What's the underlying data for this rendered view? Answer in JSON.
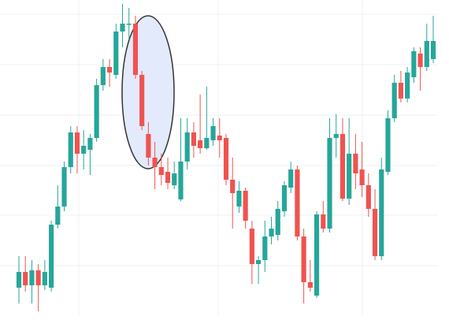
{
  "chart_data": {
    "type": "candlestick",
    "ylim": [
      0,
      400
    ],
    "up_color": "#26a69a",
    "down_color": "#ef5350",
    "open": [
      35,
      55,
      38,
      57,
      38,
      35,
      115,
      138,
      188,
      232,
      205,
      210,
      225,
      292,
      315,
      305,
      360,
      370,
      370,
      305,
      230,
      200,
      188,
      182,
      165,
      147,
      195,
      232,
      222,
      212,
      222,
      228,
      225,
      172,
      138,
      158,
      110,
      65,
      70,
      100,
      102,
      132,
      162,
      185,
      100,
      42,
      25,
      128,
      110,
      225,
      230,
      148,
      205,
      185,
      165,
      135,
      75,
      182,
      250,
      295,
      275,
      302,
      332,
      315,
      325
    ],
    "close": [
      55,
      38,
      57,
      38,
      55,
      115,
      138,
      188,
      232,
      205,
      215,
      225,
      292,
      315,
      308,
      360,
      370,
      370,
      305,
      240,
      200,
      188,
      178,
      168,
      180,
      195,
      232,
      215,
      212,
      225,
      240,
      222,
      172,
      155,
      158,
      120,
      65,
      70,
      100,
      110,
      135,
      165,
      185,
      100,
      42,
      35,
      128,
      110,
      225,
      230,
      148,
      205,
      180,
      165,
      135,
      75,
      185,
      250,
      295,
      275,
      308,
      335,
      315,
      348,
      348
    ],
    "high": [
      75,
      75,
      70,
      65,
      70,
      120,
      165,
      195,
      240,
      240,
      235,
      230,
      300,
      325,
      325,
      370,
      395,
      390,
      380,
      310,
      245,
      220,
      205,
      200,
      195,
      250,
      250,
      245,
      280,
      290,
      250,
      250,
      230,
      200,
      170,
      162,
      120,
      75,
      120,
      125,
      145,
      170,
      195,
      190,
      110,
      70,
      132,
      145,
      250,
      255,
      250,
      250,
      230,
      220,
      180,
      160,
      200,
      260,
      305,
      310,
      315,
      340,
      340,
      370,
      380
    ],
    "low": [
      15,
      30,
      15,
      5,
      32,
      30,
      110,
      132,
      180,
      180,
      185,
      178,
      220,
      285,
      290,
      300,
      340,
      350,
      300,
      235,
      190,
      160,
      165,
      160,
      160,
      145,
      185,
      200,
      205,
      210,
      215,
      200,
      165,
      110,
      130,
      110,
      40,
      40,
      55,
      90,
      95,
      125,
      155,
      95,
      15,
      30,
      22,
      105,
      105,
      200,
      145,
      140,
      160,
      150,
      125,
      70,
      70,
      178,
      245,
      270,
      270,
      295,
      285,
      310,
      320
    ]
  }
}
